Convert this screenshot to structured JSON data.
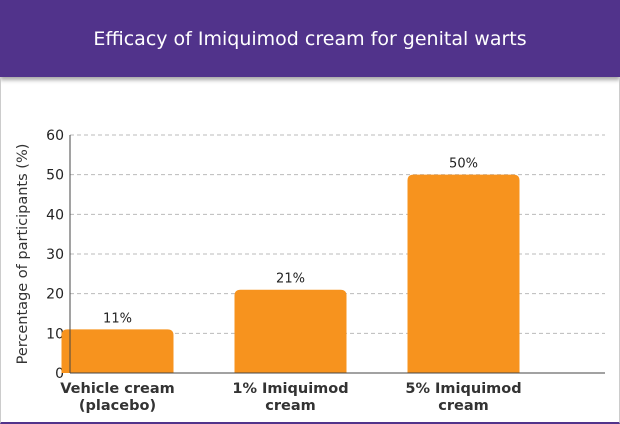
{
  "title": "Efficacy of Imiquimod cream for genital warts",
  "chart_data": {
    "type": "bar",
    "title": "Efficacy of Imiquimod cream for genital warts",
    "categories": [
      [
        "Vehicle cream",
        "(placebo)"
      ],
      [
        "1% Imiquimod",
        "cream"
      ],
      [
        "5% Imiquimod",
        "cream"
      ]
    ],
    "values": [
      11,
      21,
      50
    ],
    "data_labels": [
      "11%",
      "21%",
      "50%"
    ],
    "xlabel": "",
    "ylabel": "Percentage of participants (%)",
    "ylim": [
      0,
      60
    ],
    "yticks": [
      0,
      10,
      20,
      30,
      40,
      50,
      60
    ],
    "grid": true,
    "bar_color": "#f7931e",
    "header_color": "#51338b"
  }
}
